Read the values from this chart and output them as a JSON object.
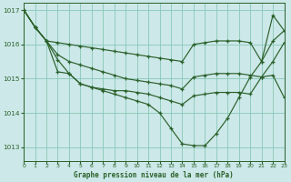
{
  "title": "Graphe pression niveau de la mer (hPa)",
  "bg_color": "#cce8e8",
  "grid_color": "#88c8b8",
  "line_color": "#2a602a",
  "xlim": [
    0,
    23
  ],
  "ylim": [
    1012.6,
    1017.2
  ],
  "yticks": [
    1013,
    1014,
    1015,
    1016,
    1017
  ],
  "xticks": [
    0,
    1,
    2,
    3,
    4,
    5,
    6,
    7,
    8,
    9,
    10,
    11,
    12,
    13,
    14,
    15,
    16,
    17,
    18,
    19,
    20,
    21,
    22,
    23
  ],
  "s1": [
    1017.0,
    1016.5,
    1016.1,
    1016.05,
    1016.0,
    1015.95,
    1015.9,
    1015.85,
    1015.8,
    1015.75,
    1015.7,
    1015.65,
    1015.6,
    1015.55,
    1015.5,
    1016.0,
    1016.05,
    1016.1,
    1016.1,
    1016.1,
    1016.05,
    1015.5,
    1016.1,
    1016.4
  ],
  "s2": [
    1017.0,
    1016.5,
    1016.1,
    1015.7,
    1015.5,
    1015.4,
    1015.3,
    1015.2,
    1015.1,
    1015.0,
    1014.95,
    1014.9,
    1014.85,
    1014.8,
    1014.7,
    1015.05,
    1015.1,
    1015.15,
    1015.15,
    1015.15,
    1015.1,
    1015.05,
    1015.5,
    1016.05
  ],
  "s3": [
    1017.0,
    1016.5,
    1016.1,
    1015.55,
    1015.15,
    1014.85,
    1014.75,
    1014.7,
    1014.65,
    1014.65,
    1014.6,
    1014.55,
    1014.45,
    1014.35,
    1014.25,
    1014.5,
    1014.55,
    1014.6,
    1014.6,
    1014.6,
    1014.55,
    1015.05,
    1015.1,
    1014.45
  ],
  "s4": [
    1017.0,
    1016.5,
    1016.1,
    1015.2,
    1015.15,
    1014.85,
    1014.75,
    1014.65,
    1014.55,
    1014.45,
    1014.35,
    1014.25,
    1014.0,
    1013.55,
    1013.1,
    1013.05,
    1013.05,
    1013.4,
    1013.85,
    1014.45,
    1015.05,
    1015.5,
    1016.85,
    1016.4
  ]
}
